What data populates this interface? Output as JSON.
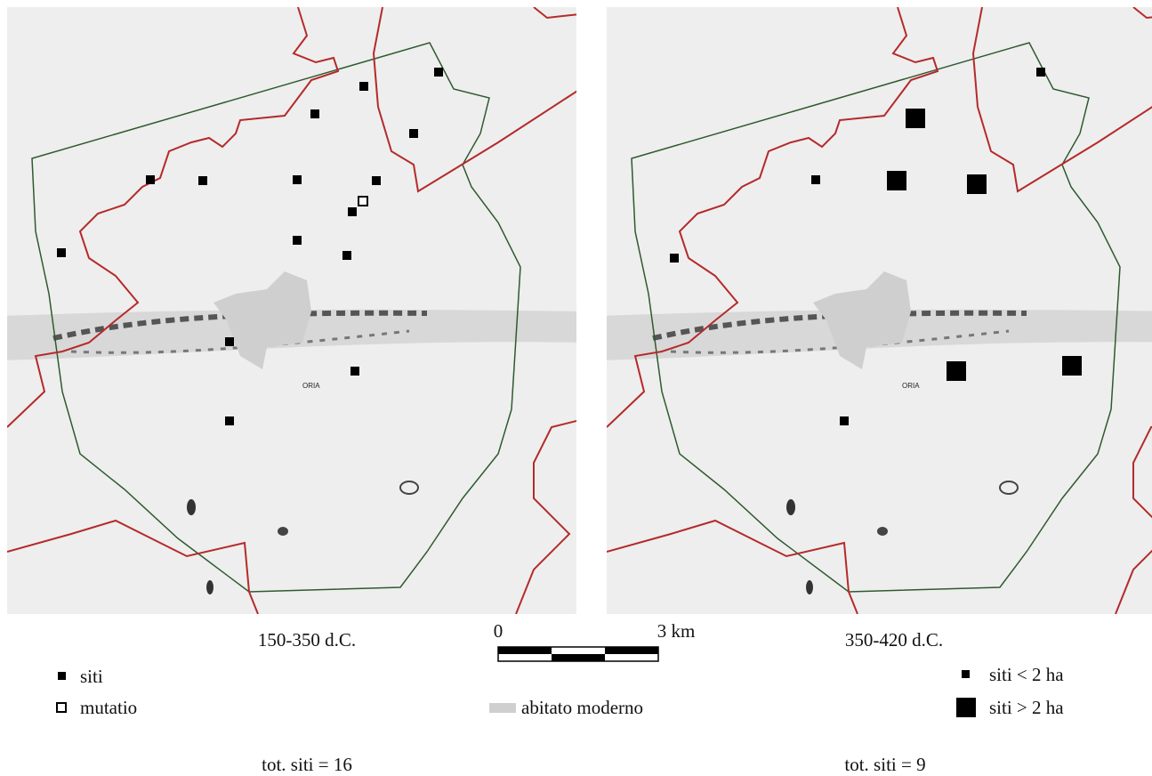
{
  "panels": [
    {
      "period": "150-350 d.C.",
      "town_label": "ORIA",
      "total": "tot. siti = 16"
    },
    {
      "period": "350-420 d.C.",
      "town_label": "ORIA",
      "total": "tot. siti = 9"
    }
  ],
  "scale_bar": {
    "start": "0",
    "end": "3 km"
  },
  "legend_left": [
    "siti",
    "mutatio"
  ],
  "legend_center": "abitato moderno",
  "legend_right": [
    "siti < 2 ha",
    "siti > 2 ha"
  ]
}
